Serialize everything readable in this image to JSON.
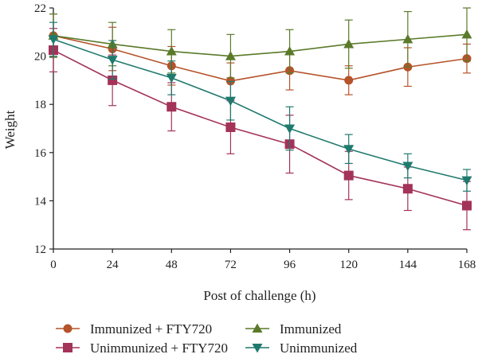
{
  "chart_data": {
    "type": "line",
    "xlabel": "Post of challenge (h)",
    "ylabel": "Weight",
    "x": [
      0,
      24,
      48,
      72,
      96,
      120,
      144,
      168
    ],
    "xlim": [
      0,
      168
    ],
    "ylim": [
      12,
      22
    ],
    "xticks": [
      0,
      24,
      48,
      72,
      96,
      120,
      144,
      168
    ],
    "yticks": [
      12,
      14,
      16,
      18,
      20,
      22
    ],
    "grid": false,
    "legend_position": "bottom",
    "series": [
      {
        "name": "Immunized + FTY720",
        "color": "#b5532a",
        "marker": "circle",
        "values": [
          20.85,
          20.3,
          19.6,
          18.97,
          19.4,
          19.0,
          19.55,
          19.9
        ],
        "error": [
          0.9,
          0.9,
          0.8,
          0.75,
          0.8,
          0.6,
          0.8,
          0.6
        ]
      },
      {
        "name": "Immunized",
        "color": "#5a7a2a",
        "marker": "triangle-up",
        "values": [
          20.85,
          20.5,
          20.2,
          20.0,
          20.2,
          20.5,
          20.7,
          20.9
        ],
        "error": [
          0.9,
          0.9,
          0.9,
          0.9,
          0.9,
          1.0,
          1.15,
          1.1
        ]
      },
      {
        "name": "Unimmunized + FTY720",
        "color": "#a33358",
        "marker": "square",
        "values": [
          20.25,
          19.0,
          17.9,
          17.05,
          16.35,
          15.05,
          14.5,
          13.8
        ],
        "error": [
          0.9,
          1.05,
          1.0,
          1.1,
          1.2,
          1.0,
          0.9,
          1.0
        ]
      },
      {
        "name": "Unimmunized",
        "color": "#1f7a6e",
        "marker": "triangle-down",
        "values": [
          20.7,
          19.85,
          19.1,
          18.15,
          17.0,
          16.15,
          15.45,
          14.85
        ],
        "error": [
          0.7,
          0.8,
          0.7,
          0.8,
          0.9,
          0.6,
          0.5,
          0.45
        ]
      }
    ]
  }
}
